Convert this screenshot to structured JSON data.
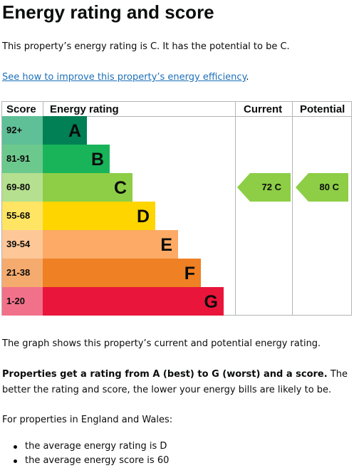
{
  "page": {
    "title": "Energy rating and score",
    "summary": "This property’s energy rating is C. It has the potential to be C.",
    "improve_link": "See how to improve this property’s energy efficiency",
    "improve_link_suffix": "."
  },
  "chart": {
    "headers": {
      "score": "Score",
      "rating": "Energy rating",
      "current": "Current",
      "potential": "Potential"
    },
    "bands": [
      {
        "score": "92+",
        "letter": "A",
        "color": "#008054",
        "score_bg": "#5fbf97"
      },
      {
        "score": "81-91",
        "letter": "B",
        "color": "#19b459",
        "score_bg": "#6cc98d"
      },
      {
        "score": "69-80",
        "letter": "C",
        "color": "#8dce46",
        "score_bg": "#b5e08f"
      },
      {
        "score": "55-68",
        "letter": "D",
        "color": "#ffd500",
        "score_bg": "#ffe563"
      },
      {
        "score": "39-54",
        "letter": "E",
        "color": "#fcaa65",
        "score_bg": "#fdc798"
      },
      {
        "score": "21-38",
        "letter": "F",
        "color": "#ef8023",
        "score_bg": "#f5ab6e"
      },
      {
        "score": "1-20",
        "letter": "G",
        "color": "#e9153b",
        "score_bg": "#f2718a"
      }
    ],
    "current": {
      "label": "72  C",
      "band": "C",
      "color": "#8dce46"
    },
    "potential": {
      "label": "80  C",
      "band": "C",
      "color": "#8dce46"
    }
  },
  "text": {
    "graph_note": "The graph shows this property’s current and potential energy rating.",
    "rating_bold": "Properties get a rating from A (best) to G (worst) and a score.",
    "rating_rest": " The better the rating and score, the lower your energy bills are likely to be.",
    "eng_wales": "For properties in England and Wales:",
    "bullets": [
      "the average energy rating is D",
      "the average energy score is 60"
    ]
  }
}
